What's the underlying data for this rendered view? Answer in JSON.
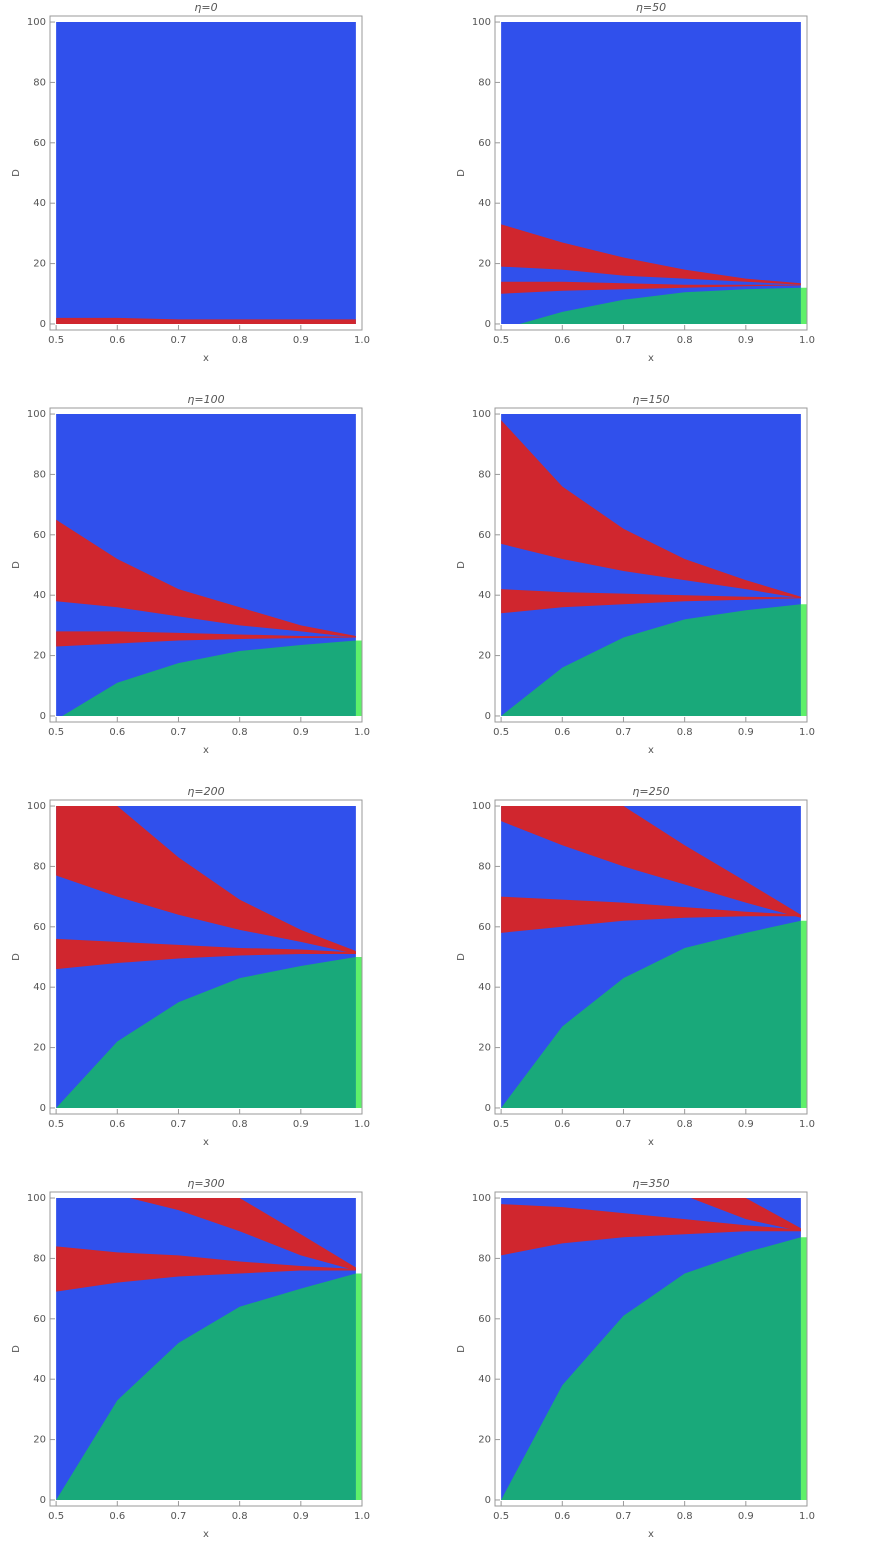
{
  "chart_data": [
    {
      "type": "region",
      "title": "η=0",
      "xlabel": "x",
      "ylabel": "D",
      "xlim": [
        0.49,
        1.0
      ],
      "ylim": [
        -2,
        102
      ],
      "xticks": [
        0.5,
        0.6,
        0.7,
        0.8,
        0.9,
        {
          "value": 1,
          "label": "1.0"
        }
      ],
      "yticks": [
        0,
        20,
        40,
        60,
        80,
        100
      ],
      "regions": [
        {
          "color": "#3050ec",
          "x": [
            0.5,
            0.99
          ],
          "lower": [
            0,
            0
          ],
          "upper": [
            100,
            100
          ]
        },
        {
          "color": "#d0262e",
          "x": [
            0.5,
            0.6,
            0.7,
            0.8,
            0.9,
            0.99
          ],
          "lower": [
            0,
            0,
            0,
            0,
            0,
            0
          ],
          "upper": [
            2,
            2,
            1.5,
            1.5,
            1.5,
            1.5
          ]
        }
      ]
    },
    {
      "type": "region",
      "title": "η=50",
      "xlabel": "x",
      "ylabel": "D",
      "xlim": [
        0.49,
        1.0
      ],
      "ylim": [
        -2,
        102
      ],
      "xticks": [
        0.5,
        0.6,
        0.7,
        0.8,
        0.9,
        {
          "value": 1,
          "label": "1.0"
        }
      ],
      "yticks": [
        0,
        20,
        40,
        60,
        80,
        100
      ],
      "regions": [
        {
          "color": "#3050ec",
          "x": [
            0.5,
            0.99
          ],
          "lower": [
            0,
            0
          ],
          "upper": [
            100,
            100
          ]
        },
        {
          "color": "#d0262e",
          "x": [
            0.5,
            0.6,
            0.7,
            0.8,
            0.9,
            0.99
          ],
          "lower": [
            19,
            18,
            16,
            15,
            14,
            13
          ],
          "upper": [
            33,
            27,
            22,
            18,
            15,
            13.5
          ]
        },
        {
          "color": "#d0262e",
          "x": [
            0.5,
            0.6,
            0.7,
            0.8,
            0.9,
            0.99
          ],
          "lower": [
            10,
            11,
            11.5,
            12,
            12.5,
            12.8
          ],
          "upper": [
            14,
            14,
            13.5,
            13,
            13,
            13
          ]
        },
        {
          "color": "#19a97a",
          "x": [
            0.53,
            0.6,
            0.7,
            0.8,
            0.9,
            0.99
          ],
          "lower": [
            0,
            0,
            0,
            0,
            0,
            0
          ],
          "upper": [
            0,
            4,
            8,
            10.5,
            11.5,
            12
          ]
        },
        {
          "color": "#5ef06a",
          "x": [
            0.99,
            1.0
          ],
          "lower": [
            0,
            0
          ],
          "upper": [
            12,
            12
          ]
        }
      ]
    },
    {
      "type": "region",
      "title": "η=100",
      "xlabel": "x",
      "ylabel": "D",
      "xlim": [
        0.49,
        1.0
      ],
      "ylim": [
        -2,
        102
      ],
      "xticks": [
        0.5,
        0.6,
        0.7,
        0.8,
        0.9,
        {
          "value": 1,
          "label": "1.0"
        }
      ],
      "yticks": [
        0,
        20,
        40,
        60,
        80,
        100
      ],
      "regions": [
        {
          "color": "#3050ec",
          "x": [
            0.5,
            0.99
          ],
          "lower": [
            0,
            0
          ],
          "upper": [
            100,
            100
          ]
        },
        {
          "color": "#d0262e",
          "x": [
            0.5,
            0.6,
            0.7,
            0.8,
            0.9,
            0.99
          ],
          "lower": [
            38,
            36,
            33,
            30,
            28,
            26
          ],
          "upper": [
            65,
            52,
            42,
            36,
            30,
            26.5
          ]
        },
        {
          "color": "#d0262e",
          "x": [
            0.5,
            0.6,
            0.7,
            0.8,
            0.9,
            0.99
          ],
          "lower": [
            23,
            24,
            25,
            25.5,
            25.8,
            26
          ],
          "upper": [
            28,
            28,
            27.5,
            27,
            26.5,
            26.2
          ]
        },
        {
          "color": "#19a97a",
          "x": [
            0.51,
            0.6,
            0.7,
            0.8,
            0.9,
            0.99
          ],
          "lower": [
            0,
            0,
            0,
            0,
            0,
            0
          ],
          "upper": [
            0,
            11,
            17.5,
            21.5,
            23.5,
            25
          ]
        },
        {
          "color": "#5ef06a",
          "x": [
            0.99,
            1.0
          ],
          "lower": [
            0,
            0
          ],
          "upper": [
            25,
            25
          ]
        }
      ]
    },
    {
      "type": "region",
      "title": "η=150",
      "xlabel": "x",
      "ylabel": "D",
      "xlim": [
        0.49,
        1.0
      ],
      "ylim": [
        -2,
        102
      ],
      "xticks": [
        0.5,
        0.6,
        0.7,
        0.8,
        0.9,
        {
          "value": 1,
          "label": "1.0"
        }
      ],
      "yticks": [
        0,
        20,
        40,
        60,
        80,
        100
      ],
      "regions": [
        {
          "color": "#3050ec",
          "x": [
            0.5,
            0.99
          ],
          "lower": [
            0,
            0
          ],
          "upper": [
            100,
            100
          ]
        },
        {
          "color": "#d0262e",
          "x": [
            0.5,
            0.6,
            0.7,
            0.8,
            0.9,
            0.99
          ],
          "lower": [
            57,
            52,
            48,
            45,
            42,
            39
          ],
          "upper": [
            98,
            76,
            62,
            52,
            45,
            39.5
          ]
        },
        {
          "color": "#d0262e",
          "x": [
            0.5,
            0.6,
            0.7,
            0.8,
            0.9,
            0.99
          ],
          "lower": [
            34,
            36,
            37,
            38,
            38.5,
            39
          ],
          "upper": [
            42,
            41,
            40.5,
            40,
            39.5,
            39.2
          ]
        },
        {
          "color": "#19a97a",
          "x": [
            0.5,
            0.6,
            0.7,
            0.8,
            0.9,
            0.99
          ],
          "lower": [
            0,
            0,
            0,
            0,
            0,
            0
          ],
          "upper": [
            0,
            16,
            26,
            32,
            35,
            37
          ]
        },
        {
          "color": "#5ef06a",
          "x": [
            0.99,
            1.0
          ],
          "lower": [
            0,
            0
          ],
          "upper": [
            37,
            37
          ]
        }
      ]
    },
    {
      "type": "region",
      "title": "η=200",
      "xlabel": "x",
      "ylabel": "D",
      "xlim": [
        0.49,
        1.0
      ],
      "ylim": [
        -2,
        102
      ],
      "xticks": [
        0.5,
        0.6,
        0.7,
        0.8,
        0.9,
        {
          "value": 1,
          "label": "1.0"
        }
      ],
      "yticks": [
        0,
        20,
        40,
        60,
        80,
        100
      ],
      "regions": [
        {
          "color": "#3050ec",
          "x": [
            0.5,
            0.99
          ],
          "lower": [
            0,
            0
          ],
          "upper": [
            100,
            100
          ]
        },
        {
          "color": "#d0262e",
          "x": [
            0.5,
            0.6,
            0.7,
            0.8,
            0.9,
            0.99
          ],
          "lower": [
            77,
            70,
            64,
            59,
            55,
            51
          ],
          "upper": [
            100,
            100,
            83,
            69,
            59,
            52
          ]
        },
        {
          "color": "#d0262e",
          "x": [
            0.5,
            0.6,
            0.7,
            0.8,
            0.9,
            0.99
          ],
          "lower": [
            46,
            48,
            49.5,
            50.5,
            51,
            51
          ],
          "upper": [
            56,
            55,
            54,
            53,
            52.5,
            51.5
          ]
        },
        {
          "color": "#19a97a",
          "x": [
            0.5,
            0.6,
            0.7,
            0.8,
            0.9,
            0.99
          ],
          "lower": [
            0,
            0,
            0,
            0,
            0,
            0
          ],
          "upper": [
            0,
            22,
            35,
            43,
            47,
            50
          ]
        },
        {
          "color": "#5ef06a",
          "x": [
            0.99,
            1.0
          ],
          "lower": [
            0,
            0
          ],
          "upper": [
            50,
            50
          ]
        }
      ]
    },
    {
      "type": "region",
      "title": "η=250",
      "xlabel": "x",
      "ylabel": "D",
      "xlim": [
        0.49,
        1.0
      ],
      "ylim": [
        -2,
        102
      ],
      "xticks": [
        0.5,
        0.6,
        0.7,
        0.8,
        0.9,
        {
          "value": 1,
          "label": "1.0"
        }
      ],
      "yticks": [
        0,
        20,
        40,
        60,
        80,
        100
      ],
      "regions": [
        {
          "color": "#3050ec",
          "x": [
            0.5,
            0.99
          ],
          "lower": [
            0,
            0
          ],
          "upper": [
            100,
            100
          ]
        },
        {
          "color": "#d0262e",
          "x": [
            0.5,
            0.6,
            0.7,
            0.8,
            0.9,
            0.99
          ],
          "lower": [
            95,
            87,
            80,
            74,
            68,
            63
          ],
          "upper": [
            100,
            100,
            100,
            87,
            75,
            64
          ]
        },
        {
          "color": "#d0262e",
          "x": [
            0.5,
            0.6,
            0.7,
            0.8,
            0.9,
            0.99
          ],
          "lower": [
            58,
            60,
            62,
            63,
            63.5,
            63.5
          ],
          "upper": [
            70,
            69,
            68,
            66.5,
            65,
            64
          ]
        },
        {
          "color": "#19a97a",
          "x": [
            0.5,
            0.6,
            0.7,
            0.8,
            0.9,
            0.99
          ],
          "lower": [
            0,
            0,
            0,
            0,
            0,
            0
          ],
          "upper": [
            0,
            27,
            43,
            53,
            58,
            62
          ]
        },
        {
          "color": "#5ef06a",
          "x": [
            0.99,
            1.0
          ],
          "lower": [
            0,
            0
          ],
          "upper": [
            62,
            62
          ]
        }
      ]
    },
    {
      "type": "region",
      "title": "η=300",
      "xlabel": "x",
      "ylabel": "D",
      "xlim": [
        0.49,
        1.0
      ],
      "ylim": [
        -2,
        102
      ],
      "xticks": [
        0.5,
        0.6,
        0.7,
        0.8,
        0.9,
        {
          "value": 1,
          "label": "1.0"
        }
      ],
      "yticks": [
        0,
        20,
        40,
        60,
        80,
        100
      ],
      "regions": [
        {
          "color": "#3050ec",
          "x": [
            0.5,
            0.99
          ],
          "lower": [
            0,
            0
          ],
          "upper": [
            100,
            100
          ]
        },
        {
          "color": "#d0262e",
          "x": [
            0.62,
            0.7,
            0.8,
            0.9,
            0.99
          ],
          "lower": [
            100,
            96,
            89,
            81,
            76
          ],
          "upper": [
            100,
            100,
            100,
            88,
            77
          ]
        },
        {
          "color": "#d0262e",
          "x": [
            0.5,
            0.6,
            0.7,
            0.8,
            0.9,
            0.99
          ],
          "lower": [
            69,
            72,
            74,
            75,
            76,
            76
          ],
          "upper": [
            84,
            82,
            81,
            79,
            77.5,
            76.5
          ]
        },
        {
          "color": "#19a97a",
          "x": [
            0.5,
            0.6,
            0.7,
            0.8,
            0.9,
            0.99
          ],
          "lower": [
            0,
            0,
            0,
            0,
            0,
            0
          ],
          "upper": [
            0,
            33,
            52,
            64,
            70,
            75
          ]
        },
        {
          "color": "#5ef06a",
          "x": [
            0.99,
            1.0
          ],
          "lower": [
            0,
            0
          ],
          "upper": [
            75,
            75
          ]
        }
      ]
    },
    {
      "type": "region",
      "title": "η=350",
      "xlabel": "x",
      "ylabel": "D",
      "xlim": [
        0.49,
        1.0
      ],
      "ylim": [
        -2,
        102
      ],
      "xticks": [
        0.5,
        0.6,
        0.7,
        0.8,
        0.9,
        {
          "value": 1,
          "label": "1.0"
        }
      ],
      "yticks": [
        0,
        20,
        40,
        60,
        80,
        100
      ],
      "regions": [
        {
          "color": "#3050ec",
          "x": [
            0.5,
            0.99
          ],
          "lower": [
            0,
            0
          ],
          "upper": [
            100,
            100
          ]
        },
        {
          "color": "#d0262e",
          "x": [
            0.81,
            0.9,
            0.99
          ],
          "lower": [
            100,
            93,
            89
          ],
          "upper": [
            100,
            100,
            90
          ]
        },
        {
          "color": "#d0262e",
          "x": [
            0.5,
            0.6,
            0.7,
            0.8,
            0.9,
            0.99
          ],
          "lower": [
            81,
            85,
            87,
            88,
            89,
            89
          ],
          "upper": [
            98,
            97,
            95,
            93,
            91,
            89.5
          ]
        },
        {
          "color": "#19a97a",
          "x": [
            0.5,
            0.6,
            0.7,
            0.8,
            0.9,
            0.99
          ],
          "lower": [
            0,
            0,
            0,
            0,
            0,
            0
          ],
          "upper": [
            0,
            38,
            61,
            75,
            82,
            87
          ]
        },
        {
          "color": "#5ef06a",
          "x": [
            0.99,
            1.0
          ],
          "lower": [
            0,
            0
          ],
          "upper": [
            87,
            87
          ]
        }
      ]
    }
  ]
}
